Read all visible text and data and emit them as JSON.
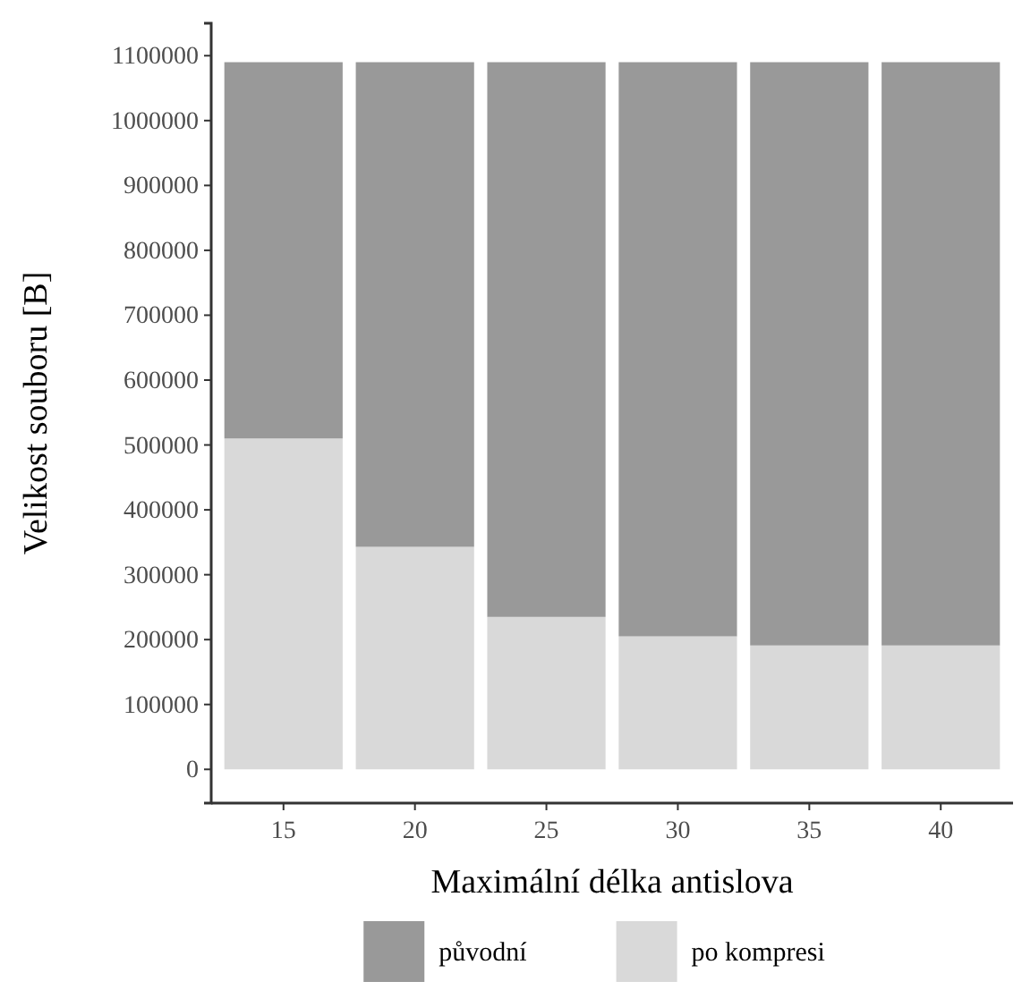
{
  "chart_data": {
    "type": "bar",
    "stacked": true,
    "xlabel": "Maximální délka antislova",
    "ylabel": "Velikost souboru [B]",
    "categories": [
      "15",
      "20",
      "25",
      "30",
      "35",
      "40"
    ],
    "series": [
      {
        "name": "po kompresi",
        "color": "#d9d9d9",
        "values": [
          510000,
          343000,
          235000,
          205000,
          191000,
          191000
        ]
      },
      {
        "name": "původní",
        "color": "#999999",
        "values": [
          580000,
          747000,
          855000,
          885000,
          899000,
          899000
        ]
      }
    ],
    "ylim": [
      -52000,
      1150000
    ],
    "yticks": [
      0,
      100000,
      200000,
      300000,
      400000,
      500000,
      600000,
      700000,
      800000,
      900000,
      1000000,
      1100000
    ],
    "grid": false,
    "legend": "bottom"
  }
}
